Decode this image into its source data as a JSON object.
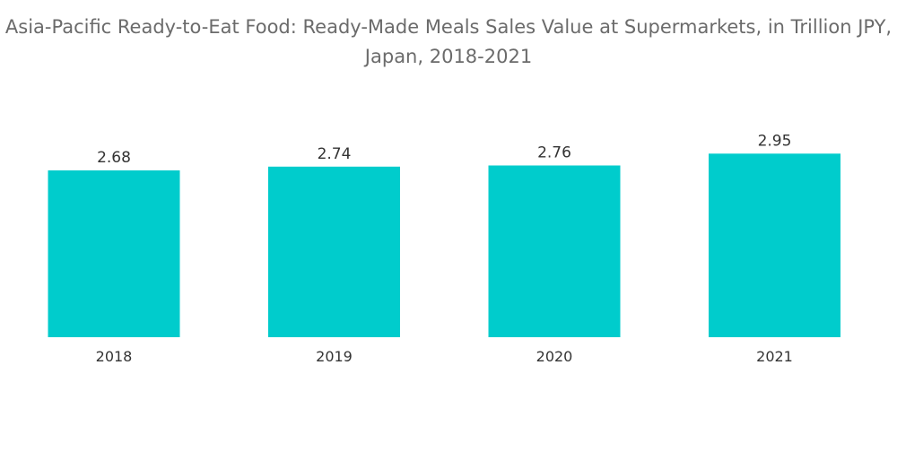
{
  "chart_data": {
    "type": "bar",
    "title": "Asia-Pacific Ready-to-Eat Food: Ready-Made Meals Sales Value at Supermarkets, in Trillion JPY, Japan, 2018-2021",
    "xlabel": "",
    "ylabel": "",
    "categories": [
      "2018",
      "2019",
      "2020",
      "2021"
    ],
    "values": [
      2.68,
      2.74,
      2.76,
      2.95
    ],
    "data_labels": [
      "2.68",
      "2.74",
      "2.76",
      "2.95"
    ],
    "ylim": [
      0,
      3.4
    ],
    "grid": false,
    "legend": "none",
    "bar_color": "#00cccc"
  }
}
